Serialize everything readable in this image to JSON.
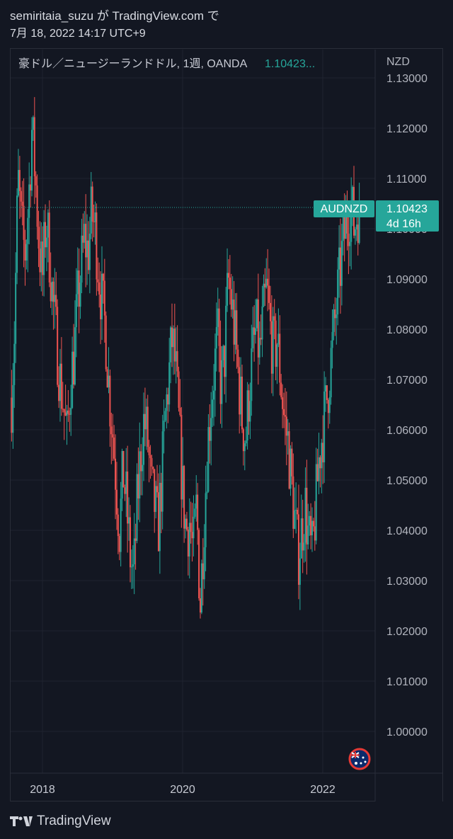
{
  "header": {
    "line1": "semiritaia_suzu が TradingView.com で",
    "line2": "7月 18, 2022 14:17 UTC+9"
  },
  "chart_header": {
    "symbol_info": "豪ドル／ニュージーランドドル, 1週, OANDA",
    "last_value": "1.10423..."
  },
  "price_axis": {
    "currency": "NZD"
  },
  "price_tag": {
    "symbol": "AUDNZD",
    "price": "1.10423",
    "countdown": "4d 16h"
  },
  "footer": {
    "brand": "TradingView"
  },
  "colors": {
    "background": "#131722",
    "up": "#26a69a",
    "down": "#ef5350",
    "grid": "#1f2330",
    "axis_text": "#b2b5be",
    "tag": "#26a69a"
  },
  "chart_data": {
    "type": "candlestick",
    "ylim": [
      0.99,
      1.13
    ],
    "y_ticks": [
      "1.13000",
      "1.12000",
      "1.11000",
      "1.10000",
      "1.09000",
      "1.08000",
      "1.07000",
      "1.06000",
      "1.05000",
      "1.04000",
      "1.03000",
      "1.02000",
      "1.01000",
      "1.00000"
    ],
    "x_ticks": [
      "2018",
      "2020",
      "2022"
    ],
    "last_price": 1.10423,
    "grid": true,
    "series_close": [
      [
        2017.55,
        1.063
      ],
      [
        2017.6,
        1.08
      ],
      [
        2017.65,
        1.11
      ],
      [
        2017.7,
        1.1
      ],
      [
        2017.75,
        1.095
      ],
      [
        2017.8,
        1.105
      ],
      [
        2017.85,
        1.12
      ],
      [
        2017.9,
        1.11
      ],
      [
        2017.95,
        1.097
      ],
      [
        2018.0,
        1.09
      ],
      [
        2018.05,
        1.102
      ],
      [
        2018.1,
        1.095
      ],
      [
        2018.15,
        1.085
      ],
      [
        2018.2,
        1.078
      ],
      [
        2018.25,
        1.07
      ],
      [
        2018.3,
        1.065
      ],
      [
        2018.35,
        1.058
      ],
      [
        2018.4,
        1.07
      ],
      [
        2018.45,
        1.075
      ],
      [
        2018.5,
        1.085
      ],
      [
        2018.55,
        1.092
      ],
      [
        2018.6,
        1.098
      ],
      [
        2018.65,
        1.095
      ],
      [
        2018.7,
        1.103
      ],
      [
        2018.75,
        1.1
      ],
      [
        2018.8,
        1.092
      ],
      [
        2018.85,
        1.085
      ],
      [
        2018.9,
        1.08
      ],
      [
        2018.95,
        1.068
      ],
      [
        2019.0,
        1.06
      ],
      [
        2019.05,
        1.05
      ],
      [
        2019.1,
        1.04
      ],
      [
        2019.15,
        1.052
      ],
      [
        2019.2,
        1.045
      ],
      [
        2019.25,
        1.035
      ],
      [
        2019.3,
        1.03
      ],
      [
        2019.35,
        1.045
      ],
      [
        2019.4,
        1.055
      ],
      [
        2019.45,
        1.062
      ],
      [
        2019.5,
        1.058
      ],
      [
        2019.55,
        1.048
      ],
      [
        2019.6,
        1.045
      ],
      [
        2019.65,
        1.04
      ],
      [
        2019.7,
        1.05
      ],
      [
        2019.75,
        1.062
      ],
      [
        2019.8,
        1.07
      ],
      [
        2019.85,
        1.078
      ],
      [
        2019.9,
        1.072
      ],
      [
        2019.95,
        1.06
      ],
      [
        2020.0,
        1.048
      ],
      [
        2020.05,
        1.04
      ],
      [
        2020.1,
        1.042
      ],
      [
        2020.15,
        1.035
      ],
      [
        2020.2,
        1.045
      ],
      [
        2020.25,
        1.025
      ],
      [
        2020.3,
        1.04
      ],
      [
        2020.35,
        1.055
      ],
      [
        2020.4,
        1.065
      ],
      [
        2020.45,
        1.072
      ],
      [
        2020.5,
        1.078
      ],
      [
        2020.55,
        1.068
      ],
      [
        2020.6,
        1.075
      ],
      [
        2020.65,
        1.09
      ],
      [
        2020.7,
        1.085
      ],
      [
        2020.75,
        1.078
      ],
      [
        2020.8,
        1.07
      ],
      [
        2020.85,
        1.062
      ],
      [
        2020.9,
        1.058
      ],
      [
        2020.95,
        1.068
      ],
      [
        2021.0,
        1.075
      ],
      [
        2021.05,
        1.08
      ],
      [
        2021.1,
        1.075
      ],
      [
        2021.15,
        1.082
      ],
      [
        2021.2,
        1.088
      ],
      [
        2021.25,
        1.08
      ],
      [
        2021.3,
        1.075
      ],
      [
        2021.35,
        1.078
      ],
      [
        2021.4,
        1.07
      ],
      [
        2021.45,
        1.062
      ],
      [
        2021.5,
        1.058
      ],
      [
        2021.55,
        1.05
      ],
      [
        2021.6,
        1.042
      ],
      [
        2021.65,
        1.035
      ],
      [
        2021.7,
        1.04
      ],
      [
        2021.75,
        1.045
      ],
      [
        2021.8,
        1.038
      ],
      [
        2021.85,
        1.035
      ],
      [
        2021.9,
        1.045
      ],
      [
        2021.95,
        1.055
      ],
      [
        2022.0,
        1.06
      ],
      [
        2022.05,
        1.065
      ],
      [
        2022.1,
        1.072
      ],
      [
        2022.15,
        1.078
      ],
      [
        2022.2,
        1.085
      ],
      [
        2022.25,
        1.092
      ],
      [
        2022.3,
        1.098
      ],
      [
        2022.35,
        1.102
      ],
      [
        2022.4,
        1.105
      ],
      [
        2022.45,
        1.1
      ],
      [
        2022.5,
        1.104
      ]
    ]
  }
}
